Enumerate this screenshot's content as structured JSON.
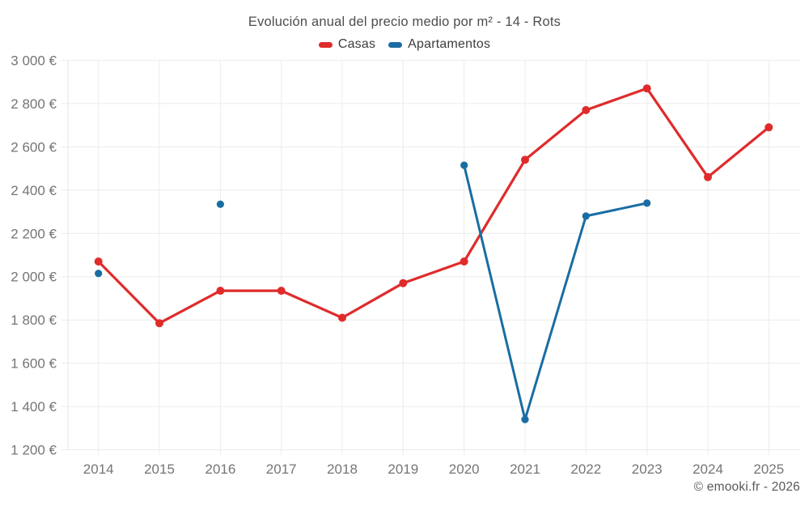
{
  "footer": {
    "copyright": "© emooki.fr - 2026"
  },
  "chart_data": {
    "type": "line",
    "title": "Evolución anual del precio medio por m² - 14 - Rots",
    "categories": [
      "2014",
      "2015",
      "2016",
      "2017",
      "2018",
      "2019",
      "2020",
      "2021",
      "2022",
      "2023",
      "2024",
      "2025"
    ],
    "series": [
      {
        "name": "Casas",
        "color": "#e02b2b",
        "marker_radius": 5,
        "values": [
          2070,
          1785,
          1935,
          1935,
          1810,
          1970,
          2070,
          2540,
          2770,
          2870,
          2460,
          2690
        ]
      },
      {
        "name": "Apartamentos",
        "color": "#1a6da3",
        "marker_radius": 4.6,
        "values": [
          2015,
          null,
          2335,
          null,
          null,
          null,
          2515,
          1340,
          2280,
          2340,
          null,
          null
        ]
      }
    ],
    "xlabel": "",
    "ylabel": "",
    "ylim": [
      1200,
      3000
    ],
    "yticks": [
      1200,
      1400,
      1600,
      1800,
      2000,
      2200,
      2400,
      2600,
      2800,
      3000
    ],
    "ytick_labels": [
      "1 200 €",
      "1 400 €",
      "1 600 €",
      "1 800 €",
      "2 000 €",
      "2 200 €",
      "2 400 €",
      "2 600 €",
      "2 800 €",
      "3 000 €"
    ],
    "grid": true,
    "legend_position": "top"
  }
}
